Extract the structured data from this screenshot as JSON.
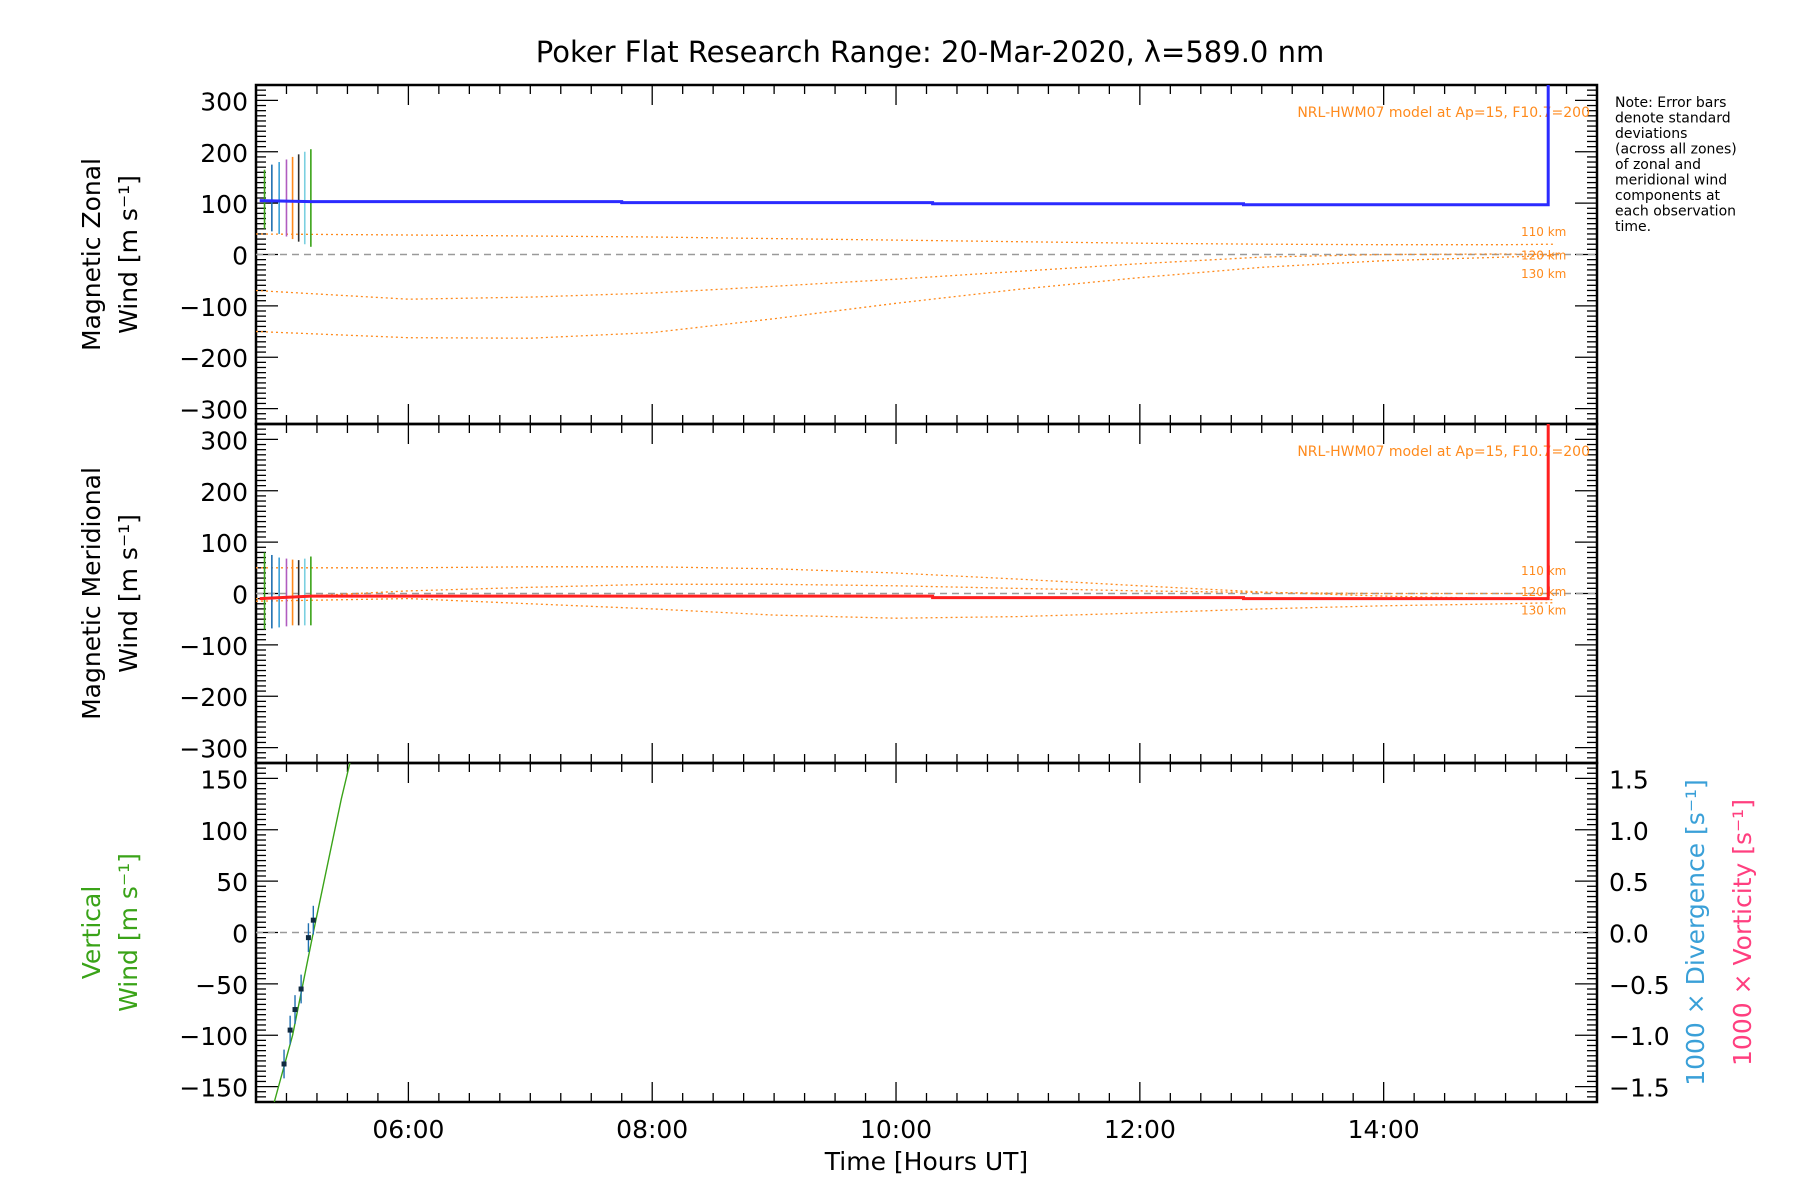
{
  "title": "Poker Flat Research Range: 20-Mar-2020, λ=589.0 nm",
  "colors": {
    "zonal": "#2b2bff",
    "meridional": "#ff2020",
    "vertical": "#3aa318",
    "model": "#ff8a1c",
    "divergence": "#3aa0d8",
    "vorticity": "#ff3f7f",
    "grey": "#9a9a9a"
  },
  "note": {
    "lines": [
      "Note: Error bars",
      "denote standard",
      "deviations",
      "(across all zones)",
      "of zonal and",
      "meridional wind",
      "components at",
      "each observation",
      "time."
    ]
  },
  "chart_data": [
    {
      "type": "line",
      "panel": "zonal",
      "ylabel_lines": [
        "Magnetic Zonal",
        "Wind [m s⁻¹]"
      ],
      "ylim": [
        -330,
        330
      ],
      "xlim": [
        4.75,
        15.75
      ],
      "x_ticks": [
        6,
        8,
        10,
        12,
        14
      ],
      "y_ticks": [
        -300,
        -200,
        -100,
        0,
        100,
        200,
        300
      ],
      "model_label": "NRL-HWM07 model at Ap=15, F10.7=200",
      "model_series": [
        {
          "name": "110 km",
          "x": [
            4.75,
            6,
            7,
            8,
            9,
            10,
            11,
            12,
            13,
            14,
            15,
            15.4
          ],
          "y": [
            40,
            38,
            36,
            34,
            31,
            28,
            25,
            22,
            20,
            19,
            19,
            20
          ]
        },
        {
          "name": "120 km",
          "x": [
            4.75,
            6,
            7,
            8,
            9,
            10,
            11,
            12,
            13,
            14,
            15,
            15.4
          ],
          "y": [
            -70,
            -87,
            -83,
            -75,
            -62,
            -48,
            -33,
            -18,
            -5,
            0,
            1,
            0
          ]
        },
        {
          "name": "130 km",
          "x": [
            4.75,
            6,
            7,
            8,
            9,
            10,
            11,
            12,
            13,
            14,
            15,
            15.4
          ],
          "y": [
            -150,
            -162,
            -163,
            -152,
            -125,
            -95,
            -68,
            -45,
            -25,
            -12,
            -5,
            -2
          ]
        }
      ],
      "series": [
        {
          "name": "Zonal wind",
          "x": [
            4.78,
            5.2,
            7.75,
            7.75,
            10.3,
            10.3,
            12.85,
            12.85,
            15.35,
            15.35
          ],
          "y": [
            105,
            103,
            103,
            101,
            101,
            99,
            99,
            97,
            97,
            330
          ]
        }
      ],
      "error_bars": {
        "x": [
          4.82,
          4.88,
          4.94,
          5.0,
          5.05,
          5.1,
          5.15,
          5.2
        ],
        "low": [
          50,
          45,
          40,
          35,
          30,
          25,
          20,
          15
        ],
        "high": [
          165,
          175,
          180,
          185,
          190,
          195,
          200,
          205
        ]
      }
    },
    {
      "type": "line",
      "panel": "meridional",
      "ylabel_lines": [
        "Magnetic Meridional",
        "Wind [m s⁻¹]"
      ],
      "ylim": [
        -330,
        330
      ],
      "xlim": [
        4.75,
        15.75
      ],
      "x_ticks": [
        6,
        8,
        10,
        12,
        14
      ],
      "y_ticks": [
        -300,
        -200,
        -100,
        0,
        100,
        200,
        300
      ],
      "model_label": "NRL-HWM07 model at Ap=15, F10.7=200",
      "model_series": [
        {
          "name": "110 km",
          "x": [
            4.75,
            6,
            7,
            8,
            9,
            10,
            11,
            12,
            13,
            14,
            15,
            15.4
          ],
          "y": [
            50,
            50,
            52,
            52,
            48,
            40,
            28,
            15,
            3,
            -5,
            -10,
            -12
          ]
        },
        {
          "name": "120 km",
          "x": [
            4.75,
            6,
            7,
            8,
            9,
            10,
            11,
            12,
            13,
            14,
            15,
            15.4
          ],
          "y": [
            -10,
            5,
            12,
            18,
            18,
            15,
            10,
            5,
            2,
            0,
            0,
            0
          ]
        },
        {
          "name": "130 km",
          "x": [
            4.75,
            6,
            7,
            8,
            9,
            10,
            11,
            12,
            13,
            14,
            15,
            15.4
          ],
          "y": [
            -15,
            -10,
            -20,
            -30,
            -42,
            -48,
            -45,
            -38,
            -30,
            -24,
            -20,
            -18
          ]
        }
      ],
      "series": [
        {
          "name": "Meridional wind",
          "x": [
            4.78,
            5.2,
            10.3,
            10.3,
            12.85,
            12.85,
            15.35,
            15.35
          ],
          "y": [
            -10,
            -5,
            -5,
            -8,
            -8,
            -10,
            -10,
            330
          ]
        }
      ],
      "error_bars": {
        "x": [
          4.82,
          4.88,
          4.94,
          5.0,
          5.05,
          5.1,
          5.15,
          5.2
        ],
        "low": [
          -70,
          -68,
          -66,
          -64,
          -62,
          -62,
          -62,
          -62
        ],
        "high": [
          80,
          75,
          70,
          68,
          66,
          65,
          68,
          72
        ]
      }
    },
    {
      "type": "line",
      "panel": "vertical",
      "ylabel_lines": [
        "Vertical",
        "Wind [m s⁻¹]"
      ],
      "y2label_divergence": "1000 × Divergence [s⁻¹]",
      "y2label_vorticity": "1000 × Vorticity [s⁻¹]",
      "ylim": [
        -165,
        165
      ],
      "y2lim": [
        -1.65,
        1.65
      ],
      "xlim": [
        4.75,
        15.75
      ],
      "x_ticks": [
        6,
        8,
        10,
        12,
        14
      ],
      "x_tick_labels": [
        "06:00",
        "08:00",
        "10:00",
        "12:00",
        "14:00"
      ],
      "xlabel": "Time [Hours UT]",
      "y_ticks": [
        -150,
        -100,
        -50,
        0,
        50,
        100,
        150
      ],
      "y2_ticks": [
        -1.5,
        -1.0,
        -0.5,
        0.0,
        0.5,
        1.0,
        1.5
      ],
      "y2_tick_labels": [
        "−1.5",
        "−1.0",
        "−0.5",
        "0.0",
        "0.5",
        "1.0",
        "1.5"
      ],
      "series": [
        {
          "name": "Vertical wind",
          "x": [
            4.9,
            5.05,
            5.22,
            5.45,
            5.52
          ],
          "y": [
            -165,
            -100,
            0,
            130,
            165
          ]
        }
      ],
      "points": {
        "x": [
          4.98,
          5.03,
          5.07,
          5.12,
          5.18,
          5.22
        ],
        "y": [
          -128,
          -95,
          -75,
          -55,
          -5,
          12
        ]
      }
    }
  ]
}
